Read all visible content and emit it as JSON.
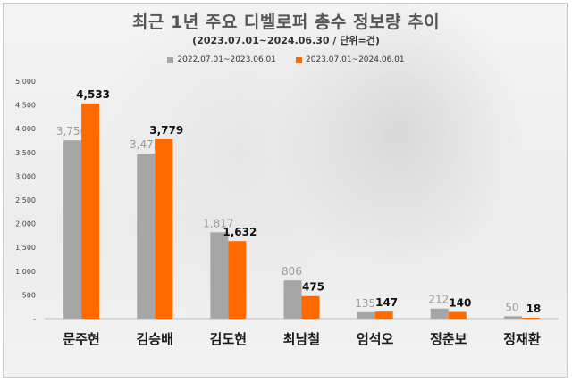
{
  "chart_data": {
    "type": "bar",
    "title": "최근 1년 주요 디벨로퍼 총수 정보량 추이",
    "subtitle": "(2023.07.01~2024.06.30 / 단위=건)",
    "categories": [
      "문주현",
      "김승배",
      "김도현",
      "최남철",
      "엄석오",
      "정춘보",
      "정재환"
    ],
    "series": [
      {
        "name": "2022.07.01~2023.06.01",
        "color": "#a6a6a6",
        "values": [
          3756,
          3475,
          1817,
          806,
          135,
          212,
          50
        ]
      },
      {
        "name": "2023.07.01~2024.06.01",
        "color": "#ff6a00",
        "values": [
          4533,
          3779,
          1632,
          475,
          147,
          140,
          18
        ]
      }
    ],
    "value_labels": [
      [
        "3,756",
        "3,475",
        "1,817",
        "806",
        "135",
        "212",
        "50"
      ],
      [
        "4,533",
        "3,779",
        "1,632",
        "475",
        "147",
        "140",
        "18"
      ]
    ],
    "yticks": [
      "-",
      "500",
      "1,000",
      "1,500",
      "2,000",
      "2,500",
      "3,000",
      "3,500",
      "4,000",
      "4,500",
      "5,000"
    ],
    "ylim": [
      0,
      5000
    ],
    "xlabel": "",
    "ylabel": "",
    "legend_position": "top-center",
    "grid": false
  }
}
